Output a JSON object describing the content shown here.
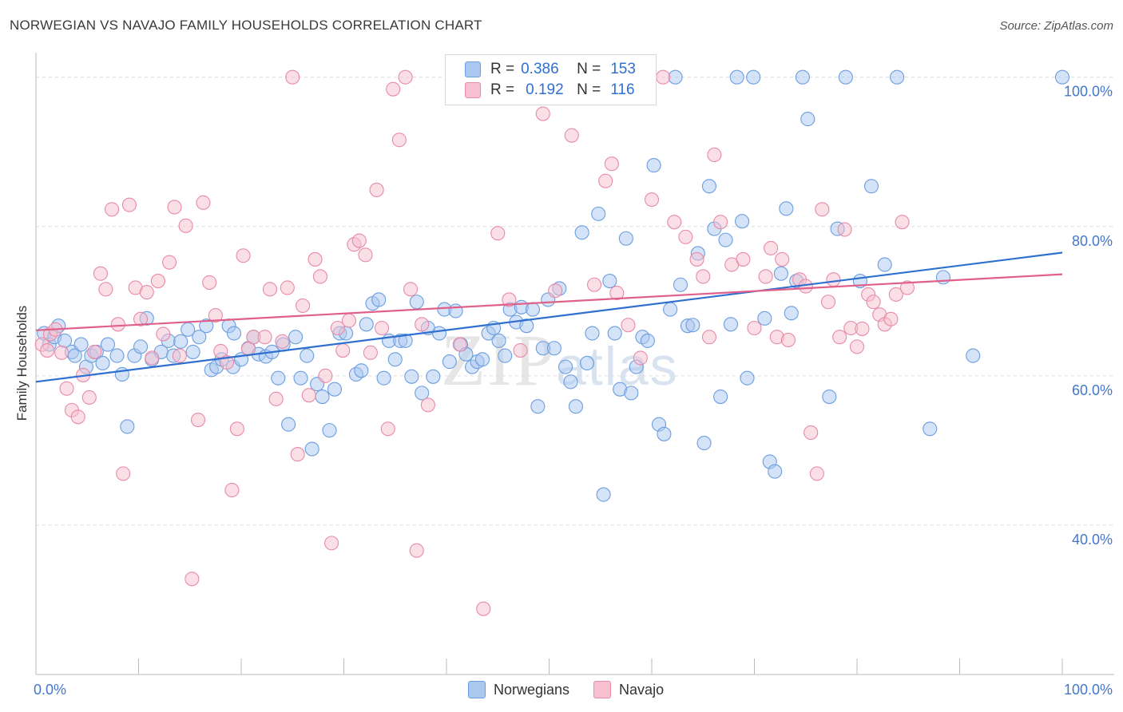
{
  "title": "NORWEGIAN VS NAVAJO FAMILY HOUSEHOLDS CORRELATION CHART",
  "source": "Source: ZipAtlas.com",
  "watermark": {
    "zip": "ZIP",
    "atlas": "atlas"
  },
  "legend": {
    "r_label": "R =",
    "n_label": "N =",
    "rows": [
      {
        "name": "Norwegians",
        "r": "0.386",
        "n": "153",
        "fill": "#aac8f0",
        "stroke": "#6b9ee0"
      },
      {
        "name": "Navajo",
        "r": "0.192",
        "n": "116",
        "fill": "#f7bfd0",
        "stroke": "#e88aa8"
      }
    ]
  },
  "chart_data": {
    "type": "scatter",
    "title": "NORWEGIAN VS NAVAJO FAMILY HOUSEHOLDS CORRELATION CHART",
    "xlabel": "",
    "ylabel": "Family Households",
    "xlim": [
      0,
      100
    ],
    "ylim": [
      20,
      102
    ],
    "x_tick_labels": [
      "0.0%",
      "100.0%"
    ],
    "y_ticks": [
      40,
      60,
      80,
      100
    ],
    "y_tick_labels": [
      "40.0%",
      "60.0%",
      "80.0%",
      "100.0%"
    ],
    "grid": true,
    "series": [
      {
        "name": "Norwegians",
        "color": "#5b93e0",
        "trend": {
          "x": [
            0,
            100
          ],
          "y": [
            59.2,
            76.5
          ],
          "color": "#2f6fd0"
        },
        "points": [
          [
            0.8,
            65.7
          ],
          [
            1.3,
            64.2
          ],
          [
            1.8,
            65.2
          ],
          [
            2.2,
            66.7
          ],
          [
            2.8,
            64.7
          ],
          [
            3.5,
            63.2
          ],
          [
            3.8,
            62.7
          ],
          [
            4.4,
            64.2
          ],
          [
            4.9,
            61.2
          ],
          [
            5.4,
            62.7
          ],
          [
            5.9,
            63.2
          ],
          [
            6.5,
            61.7
          ],
          [
            7.0,
            64.2
          ],
          [
            7.9,
            62.7
          ],
          [
            8.4,
            60.2
          ],
          [
            8.9,
            53.2
          ],
          [
            9.6,
            62.7
          ],
          [
            10.2,
            63.9
          ],
          [
            10.8,
            67.7
          ],
          [
            11.3,
            62.2
          ],
          [
            12.2,
            63.2
          ],
          [
            12.9,
            64.7
          ],
          [
            13.4,
            62.7
          ],
          [
            14.1,
            64.6
          ],
          [
            14.8,
            66.2
          ],
          [
            15.3,
            63.2
          ],
          [
            15.9,
            65.2
          ],
          [
            16.6,
            66.7
          ],
          [
            17.1,
            60.8
          ],
          [
            17.6,
            61.2
          ],
          [
            18.1,
            62.2
          ],
          [
            18.8,
            66.7
          ],
          [
            19.3,
            65.7
          ],
          [
            19.2,
            61.2
          ],
          [
            20.0,
            62.2
          ],
          [
            20.7,
            63.7
          ],
          [
            21.2,
            65.2
          ],
          [
            21.7,
            62.9
          ],
          [
            22.4,
            62.6
          ],
          [
            23.0,
            63.2
          ],
          [
            23.6,
            59.7
          ],
          [
            24.1,
            64.2
          ],
          [
            24.6,
            53.5
          ],
          [
            25.3,
            65.2
          ],
          [
            25.8,
            59.7
          ],
          [
            26.4,
            62.7
          ],
          [
            26.9,
            50.2
          ],
          [
            27.4,
            58.9
          ],
          [
            27.9,
            57.2
          ],
          [
            28.6,
            52.7
          ],
          [
            29.1,
            58.2
          ],
          [
            29.6,
            65.7
          ],
          [
            30.2,
            65.7
          ],
          [
            31.2,
            60.2
          ],
          [
            31.7,
            60.7
          ],
          [
            32.2,
            66.9
          ],
          [
            32.8,
            69.7
          ],
          [
            33.4,
            70.2
          ],
          [
            33.9,
            59.7
          ],
          [
            34.4,
            64.7
          ],
          [
            35.0,
            62.2
          ],
          [
            35.5,
            64.7
          ],
          [
            36.0,
            64.7
          ],
          [
            36.6,
            59.9
          ],
          [
            37.1,
            69.9
          ],
          [
            37.6,
            57.7
          ],
          [
            38.2,
            66.4
          ],
          [
            38.7,
            59.9
          ],
          [
            39.3,
            65.7
          ],
          [
            39.8,
            68.9
          ],
          [
            40.3,
            61.9
          ],
          [
            40.9,
            68.7
          ],
          [
            41.4,
            64.2
          ],
          [
            41.9,
            62.9
          ],
          [
            42.5,
            61.2
          ],
          [
            43.0,
            61.9
          ],
          [
            43.5,
            62.2
          ],
          [
            44.1,
            65.7
          ],
          [
            44.6,
            66.4
          ],
          [
            45.1,
            64.7
          ],
          [
            45.7,
            62.7
          ],
          [
            46.2,
            68.9
          ],
          [
            46.8,
            67.2
          ],
          [
            47.3,
            69.2
          ],
          [
            47.8,
            66.7
          ],
          [
            48.4,
            68.9
          ],
          [
            48.9,
            55.9
          ],
          [
            49.4,
            63.7
          ],
          [
            49.9,
            70.2
          ],
          [
            50.5,
            63.7
          ],
          [
            51.0,
            71.7
          ],
          [
            51.6,
            61.2
          ],
          [
            52.1,
            59.2
          ],
          [
            52.6,
            55.9
          ],
          [
            53.2,
            79.2
          ],
          [
            53.7,
            61.7
          ],
          [
            54.2,
            65.7
          ],
          [
            54.8,
            81.7
          ],
          [
            55.3,
            44.1
          ],
          [
            55.9,
            72.7
          ],
          [
            56.4,
            65.7
          ],
          [
            56.9,
            58.2
          ],
          [
            57.5,
            78.4
          ],
          [
            58.0,
            57.7
          ],
          [
            58.5,
            61.2
          ],
          [
            59.1,
            65.2
          ],
          [
            59.6,
            64.7
          ],
          [
            60.2,
            88.2
          ],
          [
            60.7,
            53.5
          ],
          [
            61.2,
            52.2
          ],
          [
            61.8,
            68.9
          ],
          [
            62.3,
            100.0
          ],
          [
            62.8,
            72.2
          ],
          [
            63.5,
            66.7
          ],
          [
            64.0,
            66.8
          ],
          [
            64.5,
            76.4
          ],
          [
            65.1,
            51.0
          ],
          [
            65.6,
            85.4
          ],
          [
            66.1,
            79.7
          ],
          [
            66.7,
            57.2
          ],
          [
            67.2,
            78.2
          ],
          [
            67.7,
            66.9
          ],
          [
            68.3,
            100.0
          ],
          [
            68.8,
            80.7
          ],
          [
            69.3,
            59.7
          ],
          [
            69.9,
            100.0
          ],
          [
            71.0,
            67.7
          ],
          [
            71.5,
            48.5
          ],
          [
            72.0,
            47.2
          ],
          [
            72.6,
            73.7
          ],
          [
            73.1,
            82.4
          ],
          [
            73.6,
            68.4
          ],
          [
            74.1,
            72.7
          ],
          [
            74.7,
            100.0
          ],
          [
            75.2,
            94.4
          ],
          [
            77.3,
            57.2
          ],
          [
            78.1,
            79.7
          ],
          [
            78.9,
            100.0
          ],
          [
            80.3,
            72.7
          ],
          [
            81.4,
            85.4
          ],
          [
            82.7,
            74.9
          ],
          [
            83.9,
            100.0
          ],
          [
            87.1,
            52.9
          ],
          [
            88.4,
            73.2
          ],
          [
            91.3,
            62.7
          ],
          [
            100.0,
            100.0
          ]
        ]
      },
      {
        "name": "Navajo",
        "color": "#e98aa8",
        "trend": {
          "x": [
            0,
            100
          ],
          "y": [
            66.1,
            73.6
          ],
          "color": "#e0608a"
        },
        "points": [
          [
            0.6,
            64.2
          ],
          [
            1.1,
            63.4
          ],
          [
            1.4,
            65.6
          ],
          [
            1.9,
            66.2
          ],
          [
            2.5,
            63.1
          ],
          [
            3.0,
            58.3
          ],
          [
            3.5,
            55.4
          ],
          [
            4.1,
            54.5
          ],
          [
            4.6,
            60.1
          ],
          [
            5.2,
            57.1
          ],
          [
            5.7,
            63.2
          ],
          [
            6.3,
            73.7
          ],
          [
            6.8,
            71.6
          ],
          [
            7.4,
            82.3
          ],
          [
            8.0,
            66.9
          ],
          [
            8.5,
            46.9
          ],
          [
            9.1,
            82.9
          ],
          [
            9.7,
            71.8
          ],
          [
            10.2,
            67.6
          ],
          [
            10.8,
            71.2
          ],
          [
            11.3,
            62.4
          ],
          [
            11.9,
            72.7
          ],
          [
            12.4,
            65.6
          ],
          [
            13.0,
            75.2
          ],
          [
            13.5,
            82.6
          ],
          [
            14.0,
            62.7
          ],
          [
            14.6,
            80.1
          ],
          [
            15.2,
            32.8
          ],
          [
            15.8,
            54.1
          ],
          [
            16.3,
            83.2
          ],
          [
            16.9,
            72.5
          ],
          [
            17.5,
            68.1
          ],
          [
            18.0,
            63.3
          ],
          [
            18.6,
            61.8
          ],
          [
            19.1,
            44.7
          ],
          [
            19.6,
            52.9
          ],
          [
            20.2,
            76.1
          ],
          [
            20.7,
            63.6
          ],
          [
            21.2,
            65.2
          ],
          [
            22.3,
            65.2
          ],
          [
            22.8,
            71.6
          ],
          [
            23.4,
            56.9
          ],
          [
            24.0,
            64.6
          ],
          [
            24.5,
            71.8
          ],
          [
            25.0,
            100.0
          ],
          [
            25.5,
            49.5
          ],
          [
            26.0,
            69.4
          ],
          [
            26.6,
            57.4
          ],
          [
            27.2,
            75.6
          ],
          [
            27.7,
            73.3
          ],
          [
            28.2,
            60.0
          ],
          [
            28.8,
            37.6
          ],
          [
            29.4,
            66.4
          ],
          [
            29.9,
            63.4
          ],
          [
            30.5,
            67.4
          ],
          [
            31.0,
            77.6
          ],
          [
            31.5,
            78.1
          ],
          [
            32.1,
            76.2
          ],
          [
            32.6,
            63.1
          ],
          [
            33.2,
            84.9
          ],
          [
            33.7,
            66.4
          ],
          [
            34.3,
            52.9
          ],
          [
            34.8,
            98.4
          ],
          [
            35.4,
            91.6
          ],
          [
            36.0,
            100.0
          ],
          [
            36.5,
            71.6
          ],
          [
            37.1,
            36.6
          ],
          [
            37.6,
            66.9
          ],
          [
            38.2,
            56.1
          ],
          [
            41.3,
            64.2
          ],
          [
            43.6,
            28.8
          ],
          [
            45.0,
            79.1
          ],
          [
            46.1,
            70.2
          ],
          [
            47.2,
            63.4
          ],
          [
            48.3,
            100.0
          ],
          [
            49.4,
            95.1
          ],
          [
            50.6,
            71.4
          ],
          [
            51.7,
            100.0
          ],
          [
            52.2,
            92.2
          ],
          [
            53.3,
            100.0
          ],
          [
            54.4,
            72.2
          ],
          [
            55.5,
            86.1
          ],
          [
            56.1,
            88.4
          ],
          [
            56.6,
            71.1
          ],
          [
            57.2,
            100.0
          ],
          [
            57.7,
            66.8
          ],
          [
            58.9,
            62.4
          ],
          [
            60.0,
            83.6
          ],
          [
            61.1,
            100.0
          ],
          [
            62.2,
            80.6
          ],
          [
            63.3,
            78.6
          ],
          [
            64.4,
            75.6
          ],
          [
            65.0,
            73.3
          ],
          [
            65.6,
            65.2
          ],
          [
            66.1,
            89.6
          ],
          [
            66.7,
            80.6
          ],
          [
            67.8,
            74.9
          ],
          [
            68.9,
            75.6
          ],
          [
            70.0,
            66.4
          ],
          [
            71.1,
            73.3
          ],
          [
            71.6,
            77.1
          ],
          [
            72.2,
            65.2
          ],
          [
            72.7,
            75.6
          ],
          [
            73.3,
            64.8
          ],
          [
            74.4,
            72.9
          ],
          [
            75.0,
            72.0
          ],
          [
            75.5,
            52.4
          ],
          [
            76.1,
            46.9
          ],
          [
            76.6,
            82.3
          ],
          [
            77.2,
            69.9
          ],
          [
            77.7,
            72.9
          ],
          [
            78.3,
            65.2
          ],
          [
            78.8,
            79.6
          ],
          [
            79.4,
            66.4
          ],
          [
            80.0,
            63.9
          ],
          [
            80.5,
            66.3
          ],
          [
            81.1,
            70.9
          ],
          [
            81.6,
            69.9
          ],
          [
            82.2,
            68.2
          ],
          [
            82.7,
            66.9
          ],
          [
            83.3,
            67.6
          ],
          [
            83.8,
            70.9
          ],
          [
            84.4,
            80.6
          ],
          [
            84.9,
            71.8
          ]
        ]
      }
    ]
  }
}
